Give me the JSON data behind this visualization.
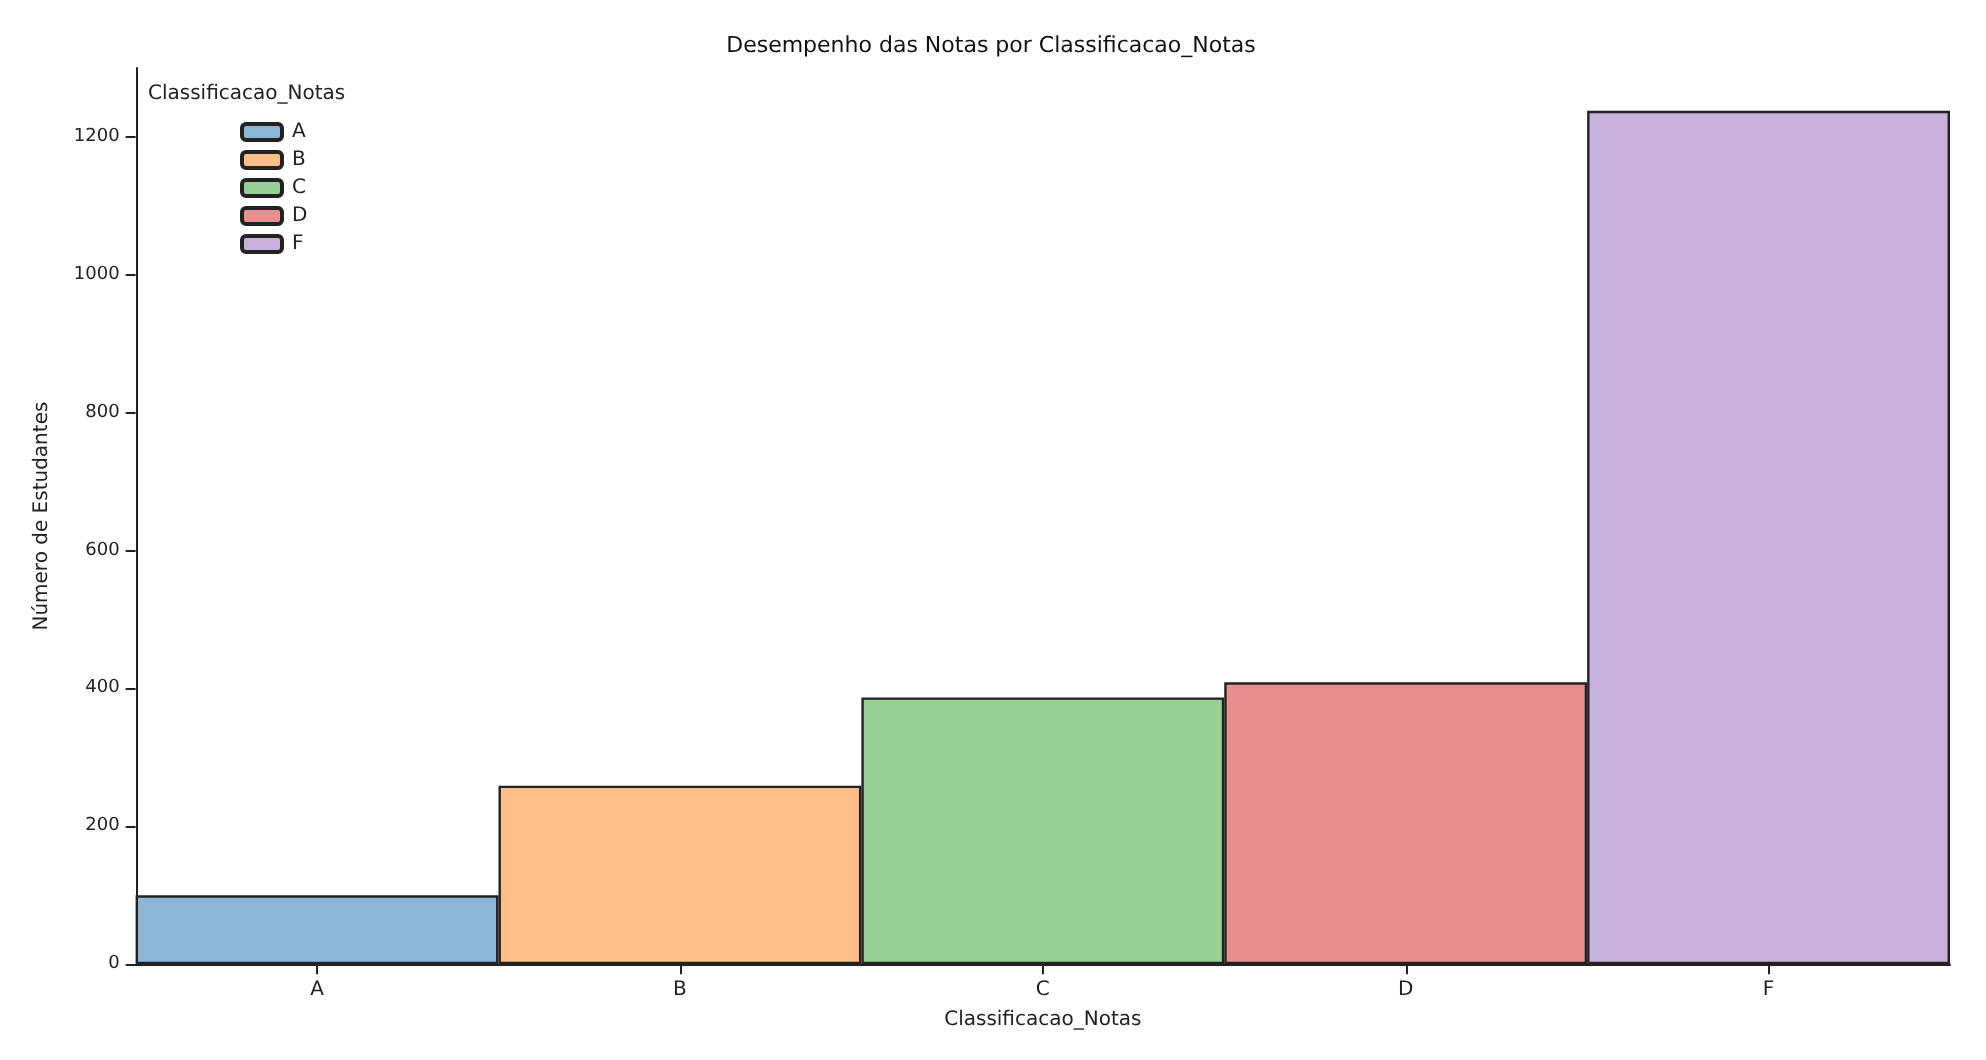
{
  "chart_data": {
    "type": "bar",
    "title": "Desempenho das Notas por Classificacao_Notas",
    "xlabel": "Classificacao_Notas",
    "ylabel": "Número de Estudantes",
    "legend_title": "Classificacao_Notas",
    "categories": [
      "A",
      "B",
      "C",
      "D",
      "F"
    ],
    "series": [
      {
        "name": "A",
        "color": "#8cb6d8",
        "values": [
          100,
          null,
          null,
          null,
          null
        ]
      },
      {
        "name": "B",
        "color": "#ffbd87",
        "values": [
          null,
          259,
          null,
          null,
          null
        ]
      },
      {
        "name": "C",
        "color": "#95cf95",
        "values": [
          null,
          null,
          387,
          null,
          null
        ]
      },
      {
        "name": "D",
        "color": "#e88f90",
        "values": [
          null,
          null,
          null,
          409,
          null
        ]
      },
      {
        "name": "F",
        "color": "#c8b1dd",
        "values": [
          null,
          null,
          null,
          null,
          1238
        ]
      }
    ],
    "stacked": true,
    "ylim": [
      0,
      1300
    ],
    "yticks": [
      0,
      200,
      400,
      600,
      800,
      1000,
      1200
    ],
    "grid": false,
    "legend": "top left"
  }
}
